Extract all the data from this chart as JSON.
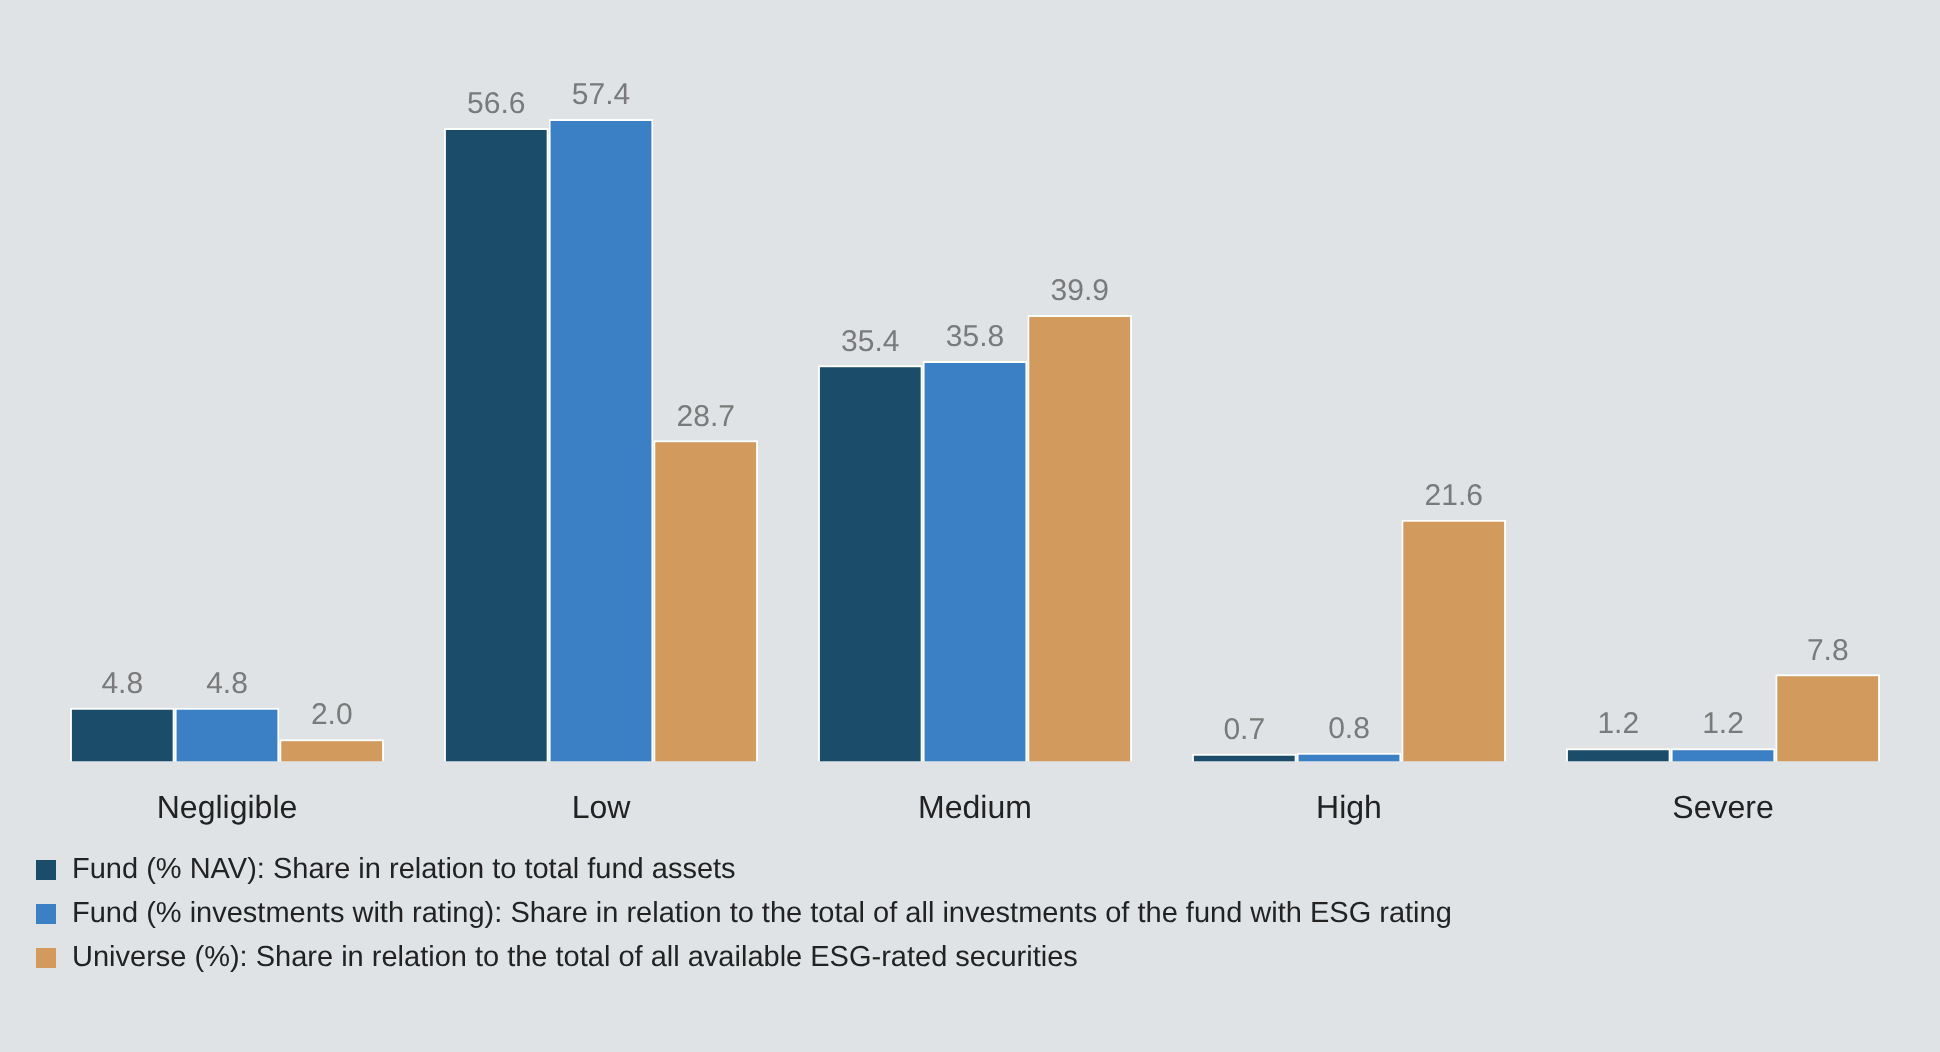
{
  "chart_data": {
    "type": "bar",
    "categories": [
      "Negligible",
      "Low",
      "Medium",
      "High",
      "Severe"
    ],
    "series": [
      {
        "name": "Fund (% NAV): Share in relation to total fund assets",
        "color": "#1b4d6b",
        "values": [
          4.8,
          56.6,
          35.4,
          0.7,
          1.2
        ],
        "value_labels": [
          "4.8",
          "56.6",
          "35.4",
          "0.7",
          "1.2"
        ]
      },
      {
        "name": "Fund (% investments with rating): Share in relation to the total of all investments of the fund with ESG rating",
        "color": "#3b7fc4",
        "values": [
          4.8,
          57.4,
          35.8,
          0.8,
          1.2
        ],
        "value_labels": [
          "4.8",
          "57.4",
          "35.8",
          "0.8",
          "1.2"
        ]
      },
      {
        "name": "Universe (%): Share in relation to the total of all available ESG-rated securities",
        "color": "#d39a5e",
        "values": [
          2.0,
          28.7,
          39.9,
          21.6,
          7.8
        ],
        "value_labels": [
          "2.0",
          "28.7",
          "39.9",
          "21.6",
          "7.8"
        ]
      }
    ],
    "legend": "bottom left",
    "grid": false,
    "tick_labels": "x"
  }
}
